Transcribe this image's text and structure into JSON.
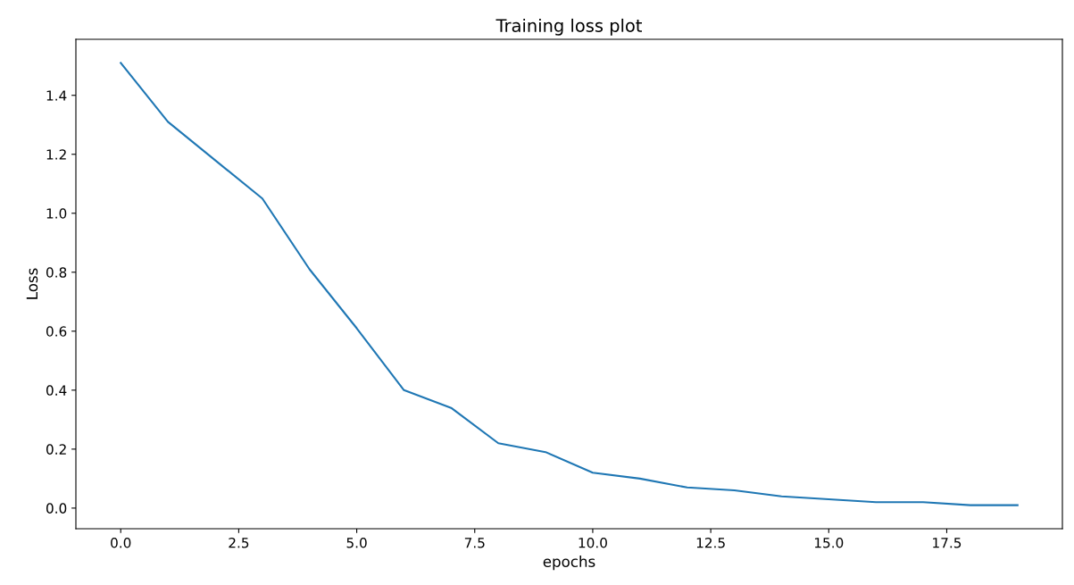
{
  "chart_data": {
    "type": "line",
    "title": "Training loss plot",
    "xlabel": "epochs",
    "ylabel": "Loss",
    "x": [
      0,
      1,
      2,
      3,
      4,
      5,
      6,
      7,
      8,
      9,
      10,
      11,
      12,
      13,
      14,
      15,
      16,
      17,
      18,
      19
    ],
    "series": [
      {
        "color": "#1f77b4",
        "values": [
          1.51,
          1.31,
          1.18,
          1.05,
          0.81,
          0.61,
          0.4,
          0.34,
          0.22,
          0.19,
          0.12,
          0.1,
          0.07,
          0.06,
          0.04,
          0.03,
          0.02,
          0.02,
          0.01,
          0.01
        ]
      }
    ],
    "xlim": [
      -0.95,
      19.95
    ],
    "xticks": [
      {
        "value": 0,
        "label": "0.0"
      },
      {
        "value": 2.5,
        "label": "2.5"
      },
      {
        "value": 5,
        "label": "5.0"
      },
      {
        "value": 7.5,
        "label": "7.5"
      },
      {
        "value": 10,
        "label": "10.0"
      },
      {
        "value": 12.5,
        "label": "12.5"
      },
      {
        "value": 15,
        "label": "15.0"
      },
      {
        "value": 17.5,
        "label": "17.5"
      }
    ],
    "ylim": [
      -0.07,
      1.59
    ],
    "yticks": [
      {
        "value": 0,
        "label": "0.0"
      },
      {
        "value": 0.2,
        "label": "0.2"
      },
      {
        "value": 0.4,
        "label": "0.4"
      },
      {
        "value": 0.6,
        "label": "0.6"
      },
      {
        "value": 0.8,
        "label": "0.8"
      },
      {
        "value": 1.0,
        "label": "1.0"
      },
      {
        "value": 1.2,
        "label": "1.2"
      },
      {
        "value": 1.4,
        "label": "1.4"
      }
    ],
    "grid": false,
    "legend": false
  }
}
